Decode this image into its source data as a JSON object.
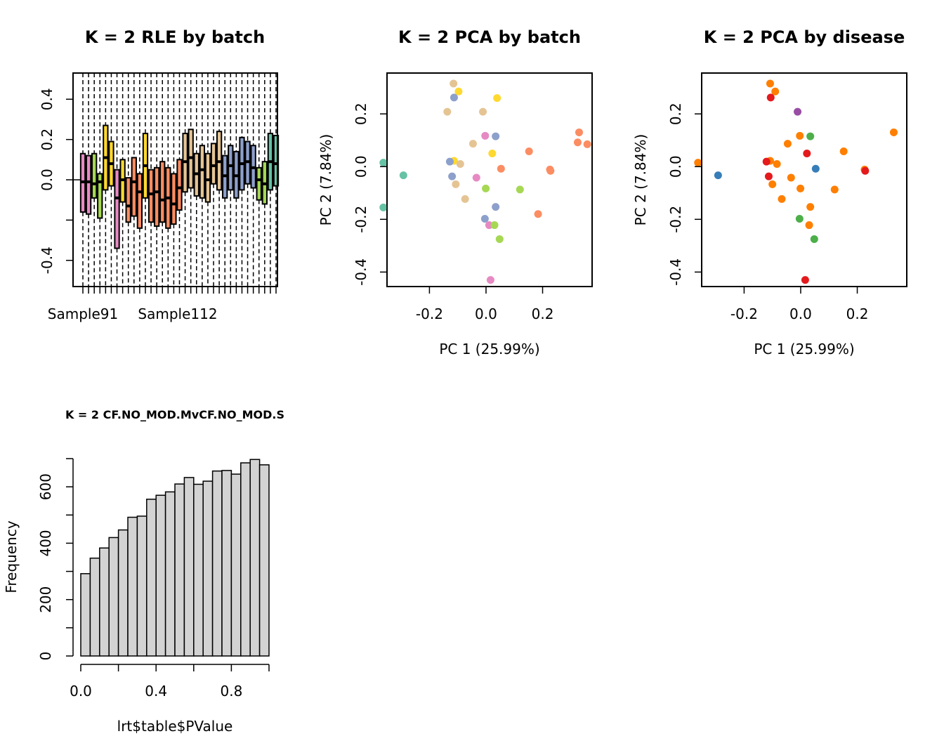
{
  "chart_data": [
    {
      "type": "boxplot",
      "title": "K = 2 RLE by batch",
      "xlabel": "",
      "ylabel": "",
      "ylim": [
        -0.53,
        0.53
      ],
      "yticks": [
        -0.4,
        -0.2,
        0.0,
        0.2,
        0.4
      ],
      "ytick_labels": [
        "-0.4",
        "",
        "0.0",
        "0.2",
        "0.4"
      ],
      "x_tick_labels": [
        "Sample91",
        "Sample112"
      ],
      "n_samples": 35,
      "boxes": [
        {
          "color": "#E78AC3",
          "q1": -0.16,
          "median": -0.01,
          "q3": 0.13
        },
        {
          "color": "#E78AC3",
          "q1": -0.17,
          "median": -0.01,
          "q3": 0.12
        },
        {
          "color": "#A6D854",
          "q1": -0.09,
          "median": -0.02,
          "q3": 0.13
        },
        {
          "color": "#A6D854",
          "q1": -0.19,
          "median": -0.01,
          "q3": 0.03
        },
        {
          "color": "#FFD92F",
          "q1": -0.05,
          "median": 0.11,
          "q3": 0.27
        },
        {
          "color": "#FFD92F",
          "q1": -0.03,
          "median": 0.08,
          "q3": 0.19
        },
        {
          "color": "#E78AC3",
          "q1": -0.34,
          "median": -0.09,
          "q3": 0.05
        },
        {
          "color": "#FFD92F",
          "q1": -0.11,
          "median": 0.0,
          "q3": 0.1
        },
        {
          "color": "#FC8D62",
          "q1": -0.21,
          "median": -0.13,
          "q3": 0.01
        },
        {
          "color": "#FC8D62",
          "q1": -0.18,
          "median": -0.01,
          "q3": 0.11
        },
        {
          "color": "#FC8D62",
          "q1": -0.24,
          "median": -0.06,
          "q3": 0.03
        },
        {
          "color": "#FFD92F",
          "q1": -0.09,
          "median": 0.07,
          "q3": 0.23
        },
        {
          "color": "#FC8D62",
          "q1": -0.21,
          "median": -0.07,
          "q3": 0.05
        },
        {
          "color": "#FC8D62",
          "q1": -0.23,
          "median": -0.06,
          "q3": 0.06
        },
        {
          "color": "#FC8D62",
          "q1": -0.21,
          "median": -0.1,
          "q3": 0.09
        },
        {
          "color": "#FC8D62",
          "q1": -0.24,
          "median": -0.09,
          "q3": 0.06
        },
        {
          "color": "#FC8D62",
          "q1": -0.22,
          "median": -0.12,
          "q3": 0.03
        },
        {
          "color": "#FC8D62",
          "q1": -0.15,
          "median": -0.04,
          "q3": 0.1
        },
        {
          "color": "#E5C494",
          "q1": -0.06,
          "median": 0.09,
          "q3": 0.23
        },
        {
          "color": "#E5C494",
          "q1": -0.04,
          "median": 0.11,
          "q3": 0.25
        },
        {
          "color": "#E5C494",
          "q1": -0.08,
          "median": 0.03,
          "q3": 0.13
        },
        {
          "color": "#E5C494",
          "q1": -0.09,
          "median": 0.05,
          "q3": 0.17
        },
        {
          "color": "#E5C494",
          "q1": -0.11,
          "median": 0.0,
          "q3": 0.13
        },
        {
          "color": "#E5C494",
          "q1": -0.02,
          "median": 0.07,
          "q3": 0.18
        },
        {
          "color": "#E5C494",
          "q1": -0.05,
          "median": 0.09,
          "q3": 0.24
        },
        {
          "color": "#8DA0CB",
          "q1": -0.09,
          "median": 0.02,
          "q3": 0.12
        },
        {
          "color": "#8DA0CB",
          "q1": -0.05,
          "median": 0.07,
          "q3": 0.17
        },
        {
          "color": "#8DA0CB",
          "q1": -0.09,
          "median": 0.02,
          "q3": 0.14
        },
        {
          "color": "#8DA0CB",
          "q1": -0.05,
          "median": 0.08,
          "q3": 0.21
        },
        {
          "color": "#8DA0CB",
          "q1": -0.02,
          "median": 0.09,
          "q3": 0.19
        },
        {
          "color": "#8DA0CB",
          "q1": -0.04,
          "median": 0.06,
          "q3": 0.17
        },
        {
          "color": "#A6D854",
          "q1": -0.1,
          "median": 0.0,
          "q3": 0.06
        },
        {
          "color": "#A6D854",
          "q1": -0.12,
          "median": -0.02,
          "q3": 0.09
        },
        {
          "color": "#66C2A5",
          "q1": -0.05,
          "median": 0.09,
          "q3": 0.23
        },
        {
          "color": "#66C2A5",
          "q1": -0.03,
          "median": 0.08,
          "q3": 0.22
        }
      ]
    },
    {
      "type": "scatter",
      "title": "K = 2 PCA by batch",
      "xlabel": "PC 1 (25.99%)",
      "ylabel": "PC 2 (7.84%)",
      "xlim": [
        -0.35,
        0.375
      ],
      "ylim": [
        -0.455,
        0.355
      ],
      "xticks": [
        -0.2,
        0.0,
        0.2
      ],
      "xtick_labels": [
        "-0.2",
        "0.0",
        "0.2"
      ],
      "yticks": [
        -0.4,
        -0.2,
        0.0,
        0.2
      ],
      "ytick_labels": [
        "-0.4",
        "-0.2",
        "0.0",
        "0.2"
      ],
      "points": [
        {
          "x": -0.115,
          "y": 0.315,
          "color": "#E5C494"
        },
        {
          "x": -0.097,
          "y": 0.285,
          "color": "#FFD92F"
        },
        {
          "x": -0.113,
          "y": 0.262,
          "color": "#8DA0CB"
        },
        {
          "x": 0.039,
          "y": 0.26,
          "color": "#FFD92F"
        },
        {
          "x": -0.137,
          "y": 0.208,
          "color": "#E5C494"
        },
        {
          "x": -0.011,
          "y": 0.208,
          "color": "#E5C494"
        },
        {
          "x": -0.003,
          "y": 0.117,
          "color": "#E78AC3"
        },
        {
          "x": 0.034,
          "y": 0.115,
          "color": "#8DA0CB"
        },
        {
          "x": 0.329,
          "y": 0.13,
          "color": "#FC8D62"
        },
        {
          "x": -0.046,
          "y": 0.087,
          "color": "#E5C494"
        },
        {
          "x": 0.324,
          "y": 0.092,
          "color": "#FC8D62"
        },
        {
          "x": 0.358,
          "y": 0.085,
          "color": "#FC8D62"
        },
        {
          "x": 0.152,
          "y": 0.058,
          "color": "#FC8D62"
        },
        {
          "x": 0.022,
          "y": 0.05,
          "color": "#FFD92F"
        },
        {
          "x": -0.113,
          "y": 0.022,
          "color": "#FFD92F"
        },
        {
          "x": -0.128,
          "y": 0.019,
          "color": "#8DA0CB"
        },
        {
          "x": -0.091,
          "y": 0.01,
          "color": "#E5C494"
        },
        {
          "x": -0.363,
          "y": 0.015,
          "color": "#66C2A5"
        },
        {
          "x": 0.053,
          "y": -0.008,
          "color": "#FC8D62"
        },
        {
          "x": 0.226,
          "y": -0.011,
          "color": "#FC8D62"
        },
        {
          "x": 0.228,
          "y": -0.016,
          "color": "#FC8D62"
        },
        {
          "x": -0.292,
          "y": -0.033,
          "color": "#66C2A5"
        },
        {
          "x": -0.12,
          "y": -0.037,
          "color": "#8DA0CB"
        },
        {
          "x": -0.034,
          "y": -0.042,
          "color": "#E78AC3"
        },
        {
          "x": -0.107,
          "y": -0.067,
          "color": "#E5C494"
        },
        {
          "x": -0.001,
          "y": -0.083,
          "color": "#A6D854"
        },
        {
          "x": 0.12,
          "y": -0.087,
          "color": "#A6D854"
        },
        {
          "x": -0.074,
          "y": -0.123,
          "color": "#E5C494"
        },
        {
          "x": 0.034,
          "y": -0.153,
          "color": "#8DA0CB"
        },
        {
          "x": -0.363,
          "y": -0.155,
          "color": "#66C2A5"
        },
        {
          "x": 0.184,
          "y": -0.18,
          "color": "#FC8D62"
        },
        {
          "x": -0.004,
          "y": -0.198,
          "color": "#8DA0CB"
        },
        {
          "x": 0.011,
          "y": -0.222,
          "color": "#E78AC3"
        },
        {
          "x": 0.03,
          "y": -0.222,
          "color": "#A6D854"
        },
        {
          "x": 0.048,
          "y": -0.275,
          "color": "#A6D854"
        },
        {
          "x": 0.016,
          "y": -0.43,
          "color": "#E78AC3"
        }
      ]
    },
    {
      "type": "scatter",
      "title": "K = 2 PCA by disease",
      "xlabel": "PC 1 (25.99%)",
      "ylabel": "PC 2 (7.84%)",
      "xlim": [
        -0.35,
        0.375
      ],
      "ylim": [
        -0.455,
        0.355
      ],
      "xticks": [
        -0.2,
        0.0,
        0.2
      ],
      "xtick_labels": [
        "-0.2",
        "0.0",
        "0.2"
      ],
      "yticks": [
        -0.4,
        -0.2,
        0.0,
        0.2
      ],
      "ytick_labels": [
        "-0.4",
        "-0.2",
        "0.0",
        "0.2"
      ],
      "points": [
        {
          "x": -0.108,
          "y": 0.315,
          "color": "#FF7F00"
        },
        {
          "x": -0.09,
          "y": 0.285,
          "color": "#FF7F00"
        },
        {
          "x": -0.106,
          "y": 0.262,
          "color": "#E41A1C"
        },
        {
          "x": -0.011,
          "y": 0.208,
          "color": "#984EA3"
        },
        {
          "x": -0.003,
          "y": 0.117,
          "color": "#FF7F00"
        },
        {
          "x": 0.034,
          "y": 0.115,
          "color": "#4DAF4A"
        },
        {
          "x": 0.329,
          "y": 0.13,
          "color": "#FF7F00"
        },
        {
          "x": -0.046,
          "y": 0.087,
          "color": "#FF7F00"
        },
        {
          "x": 0.152,
          "y": 0.058,
          "color": "#FF7F00"
        },
        {
          "x": 0.022,
          "y": 0.05,
          "color": "#E41A1C"
        },
        {
          "x": -0.108,
          "y": 0.022,
          "color": "#FF7F00"
        },
        {
          "x": -0.121,
          "y": 0.019,
          "color": "#E41A1C"
        },
        {
          "x": -0.084,
          "y": 0.01,
          "color": "#FF7F00"
        },
        {
          "x": -0.363,
          "y": 0.015,
          "color": "#FF7F00"
        },
        {
          "x": 0.053,
          "y": -0.008,
          "color": "#377EB8"
        },
        {
          "x": 0.226,
          "y": -0.011,
          "color": "#FF7F00"
        },
        {
          "x": 0.228,
          "y": -0.016,
          "color": "#E41A1C"
        },
        {
          "x": -0.292,
          "y": -0.033,
          "color": "#377EB8"
        },
        {
          "x": -0.113,
          "y": -0.037,
          "color": "#E41A1C"
        },
        {
          "x": -0.034,
          "y": -0.042,
          "color": "#FF7F00"
        },
        {
          "x": -0.1,
          "y": -0.067,
          "color": "#FF7F00"
        },
        {
          "x": -0.001,
          "y": -0.083,
          "color": "#FF7F00"
        },
        {
          "x": 0.12,
          "y": -0.087,
          "color": "#FF7F00"
        },
        {
          "x": -0.067,
          "y": -0.123,
          "color": "#FF7F00"
        },
        {
          "x": 0.034,
          "y": -0.153,
          "color": "#FF7F00"
        },
        {
          "x": -0.004,
          "y": -0.198,
          "color": "#4DAF4A"
        },
        {
          "x": 0.03,
          "y": -0.222,
          "color": "#FF7F00"
        },
        {
          "x": 0.048,
          "y": -0.275,
          "color": "#4DAF4A"
        },
        {
          "x": 0.016,
          "y": -0.43,
          "color": "#E41A1C"
        }
      ]
    },
    {
      "type": "histogram",
      "title": "K = 2 CF.NO_MOD.MvCF.NO_MOD.S",
      "xlabel": "lrt$table$PValue",
      "ylabel": "Frequency",
      "xlim": [
        -0.04,
        1.0
      ],
      "ylim": [
        0,
        700
      ],
      "xticks": [
        0.0,
        0.2,
        0.4,
        0.6,
        0.8,
        1.0
      ],
      "xtick_labels": [
        "0.0",
        "",
        "0.4",
        "",
        "0.8",
        ""
      ],
      "yticks": [
        0,
        100,
        200,
        300,
        400,
        500,
        600,
        700
      ],
      "ytick_labels": [
        "0",
        "",
        "200",
        "",
        "400",
        "",
        "600",
        ""
      ],
      "bin_width": 0.05,
      "bin_start": 0.0,
      "values": [
        292,
        347,
        383,
        420,
        447,
        492,
        496,
        556,
        570,
        582,
        610,
        633,
        609,
        620,
        656,
        658,
        645,
        685,
        697,
        678
      ],
      "fill_color": "#D3D3D3"
    }
  ]
}
